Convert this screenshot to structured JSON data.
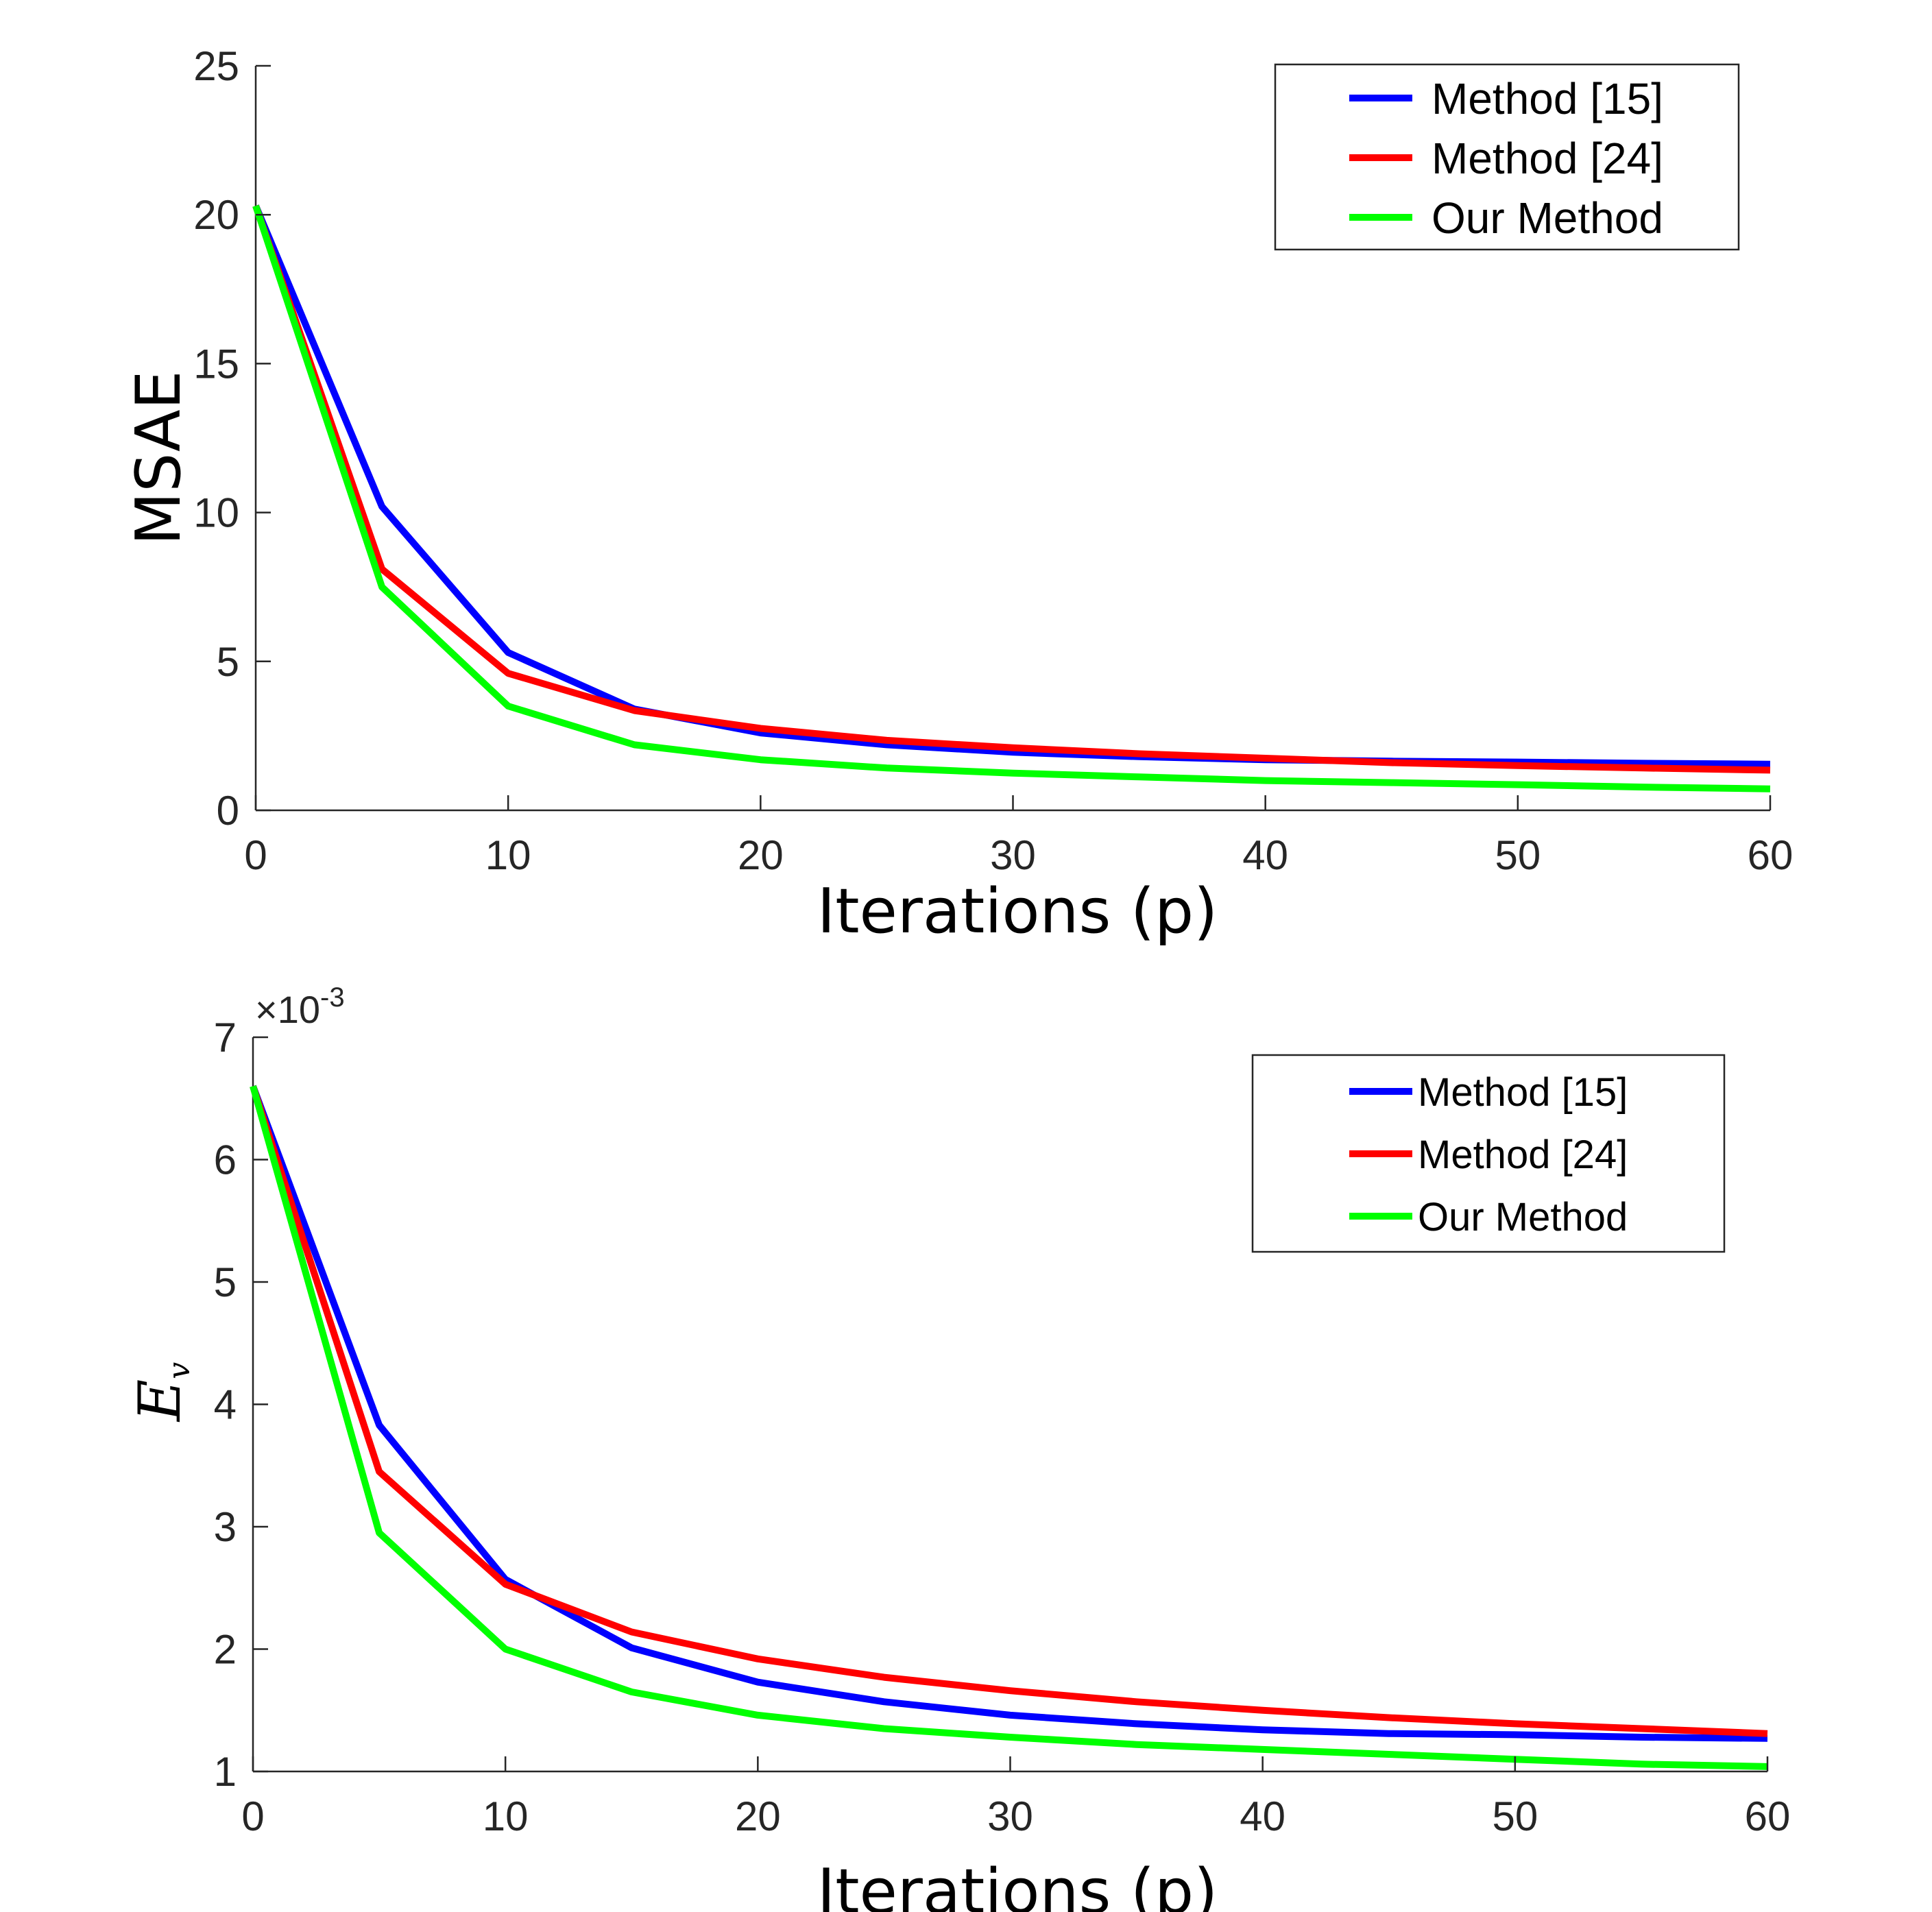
{
  "chart_data": [
    {
      "type": "line",
      "title": "",
      "xlabel": "Iterations (p)",
      "ylabel": "MSAE",
      "xlim": [
        0,
        60
      ],
      "ylim": [
        0,
        25
      ],
      "xticks": [
        "0",
        "10",
        "20",
        "30",
        "40",
        "50",
        "60"
      ],
      "yticks": [
        "0",
        "5",
        "10",
        "15",
        "20",
        "25"
      ],
      "legend_position": "top-right",
      "grid": false,
      "x": [
        0,
        5,
        10,
        15,
        20,
        25,
        30,
        35,
        40,
        45,
        50,
        55,
        60
      ],
      "series": [
        {
          "name": "Method [15]",
          "color": "#0000ff",
          "values": [
            20.3,
            10.2,
            5.3,
            3.4,
            2.6,
            2.2,
            1.95,
            1.8,
            1.7,
            1.65,
            1.62,
            1.58,
            1.55
          ]
        },
        {
          "name": "Method [24]",
          "color": "#ff0000",
          "values": [
            20.3,
            8.1,
            4.6,
            3.35,
            2.75,
            2.35,
            2.1,
            1.9,
            1.75,
            1.6,
            1.5,
            1.42,
            1.35
          ]
        },
        {
          "name": "Our Method",
          "color": "#00ff00",
          "values": [
            20.3,
            7.5,
            3.5,
            2.2,
            1.7,
            1.42,
            1.25,
            1.12,
            1.0,
            0.93,
            0.86,
            0.78,
            0.72
          ]
        }
      ]
    },
    {
      "type": "line",
      "title": "",
      "xlabel": "Iterations (p)",
      "ylabel": "E",
      "ylabel_subscript": "v",
      "exponent_base": "×10",
      "exponent_power": "-3",
      "xlim": [
        0,
        60
      ],
      "ylim": [
        1,
        7
      ],
      "xticks": [
        "0",
        "10",
        "20",
        "30",
        "40",
        "50",
        "60"
      ],
      "yticks": [
        "1",
        "2",
        "3",
        "4",
        "5",
        "6",
        "7"
      ],
      "legend_position": "top-right",
      "grid": false,
      "x": [
        0,
        5,
        10,
        15,
        20,
        25,
        30,
        35,
        40,
        45,
        50,
        55,
        60
      ],
      "series": [
        {
          "name": "Method [15]",
          "color": "#0000ff",
          "values": [
            6.6,
            3.83,
            2.57,
            2.01,
            1.73,
            1.57,
            1.46,
            1.39,
            1.34,
            1.31,
            1.3,
            1.28,
            1.27
          ]
        },
        {
          "name": "Method [24]",
          "color": "#ff0000",
          "values": [
            6.6,
            3.45,
            2.53,
            2.14,
            1.92,
            1.77,
            1.66,
            1.57,
            1.5,
            1.44,
            1.39,
            1.35,
            1.31
          ]
        },
        {
          "name": "Our Method",
          "color": "#00ff00",
          "values": [
            6.6,
            2.95,
            2.0,
            1.65,
            1.46,
            1.35,
            1.28,
            1.22,
            1.18,
            1.14,
            1.1,
            1.06,
            1.04
          ]
        }
      ]
    }
  ]
}
